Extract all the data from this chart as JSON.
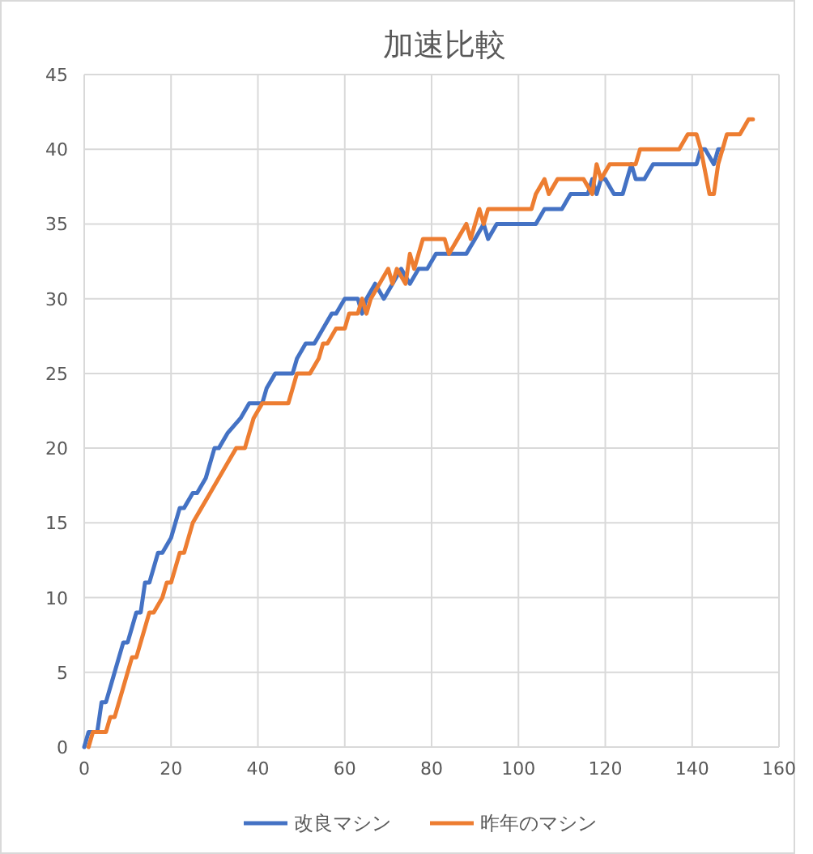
{
  "chart_data": {
    "type": "line",
    "title": "加速比較",
    "xlim": [
      0,
      160
    ],
    "xticks": [
      0,
      20,
      40,
      60,
      80,
      100,
      120,
      140,
      160
    ],
    "ylim": [
      0,
      45
    ],
    "yticks": [
      0,
      5,
      10,
      15,
      20,
      25,
      30,
      35,
      40,
      45
    ],
    "grid": true,
    "legend": "bottom",
    "marker": "none",
    "line_style": "solid",
    "series": [
      {
        "name": "改良マシン",
        "color": "#4472c4",
        "x": [
          0,
          1,
          2,
          3,
          4,
          5,
          6,
          7,
          9,
          10,
          11,
          12,
          13,
          14,
          15,
          17,
          18,
          20,
          22,
          23,
          25,
          26,
          28,
          30,
          31,
          33,
          36,
          38,
          41,
          42,
          44,
          48,
          49,
          51,
          53,
          55,
          57,
          58,
          60,
          63,
          64,
          65,
          67,
          69,
          71,
          73,
          75,
          77,
          79,
          81,
          88,
          90,
          92,
          93,
          95,
          104,
          106,
          110,
          112,
          116,
          117,
          118,
          119,
          120,
          122,
          124,
          126,
          127,
          129,
          131,
          141,
          142,
          143,
          145,
          146,
          147
        ],
        "values": [
          0,
          1,
          1,
          1,
          3,
          3,
          4,
          5,
          7,
          7,
          8,
          9,
          9,
          11,
          11,
          13,
          13,
          14,
          16,
          16,
          17,
          17,
          18,
          20,
          20,
          21,
          22,
          23,
          23,
          24,
          25,
          25,
          26,
          27,
          27,
          28,
          29,
          29,
          30,
          30,
          29,
          30,
          31,
          30,
          31,
          32,
          31,
          32,
          32,
          33,
          33,
          34,
          35,
          34,
          35,
          35,
          36,
          36,
          37,
          37,
          38,
          37,
          38,
          38,
          37,
          37,
          39,
          38,
          38,
          39,
          39,
          40,
          40,
          39,
          40,
          40
        ]
      },
      {
        "name": "昨年のマシン",
        "color": "#ed7d31",
        "x": [
          1,
          2,
          5,
          6,
          7,
          9,
          11,
          12,
          14,
          15,
          16,
          18,
          19,
          20,
          22,
          23,
          25,
          27,
          29,
          31,
          33,
          35,
          37,
          38,
          39,
          41,
          47,
          48,
          49,
          52,
          54,
          55,
          56,
          58,
          60,
          61,
          63,
          64,
          65,
          66,
          68,
          70,
          71,
          72,
          74,
          75,
          76,
          78,
          83,
          84,
          86,
          88,
          89,
          91,
          92,
          93,
          103,
          104,
          106,
          107,
          109,
          115,
          117,
          118,
          119,
          121,
          127,
          128,
          137,
          139,
          141,
          142,
          144,
          145,
          146,
          148,
          151,
          153,
          154
        ],
        "values": [
          0,
          1,
          1,
          2,
          2,
          4,
          6,
          6,
          8,
          9,
          9,
          10,
          11,
          11,
          13,
          13,
          15,
          16,
          17,
          18,
          19,
          20,
          20,
          21,
          22,
          23,
          23,
          24,
          25,
          25,
          26,
          27,
          27,
          28,
          28,
          29,
          29,
          30,
          29,
          30,
          31,
          32,
          31,
          32,
          31,
          33,
          32,
          34,
          34,
          33,
          34,
          35,
          34,
          36,
          35,
          36,
          36,
          37,
          38,
          37,
          38,
          38,
          37,
          39,
          38,
          39,
          39,
          40,
          40,
          41,
          41,
          40,
          37,
          37,
          39,
          41,
          41,
          42,
          42
        ]
      }
    ]
  }
}
